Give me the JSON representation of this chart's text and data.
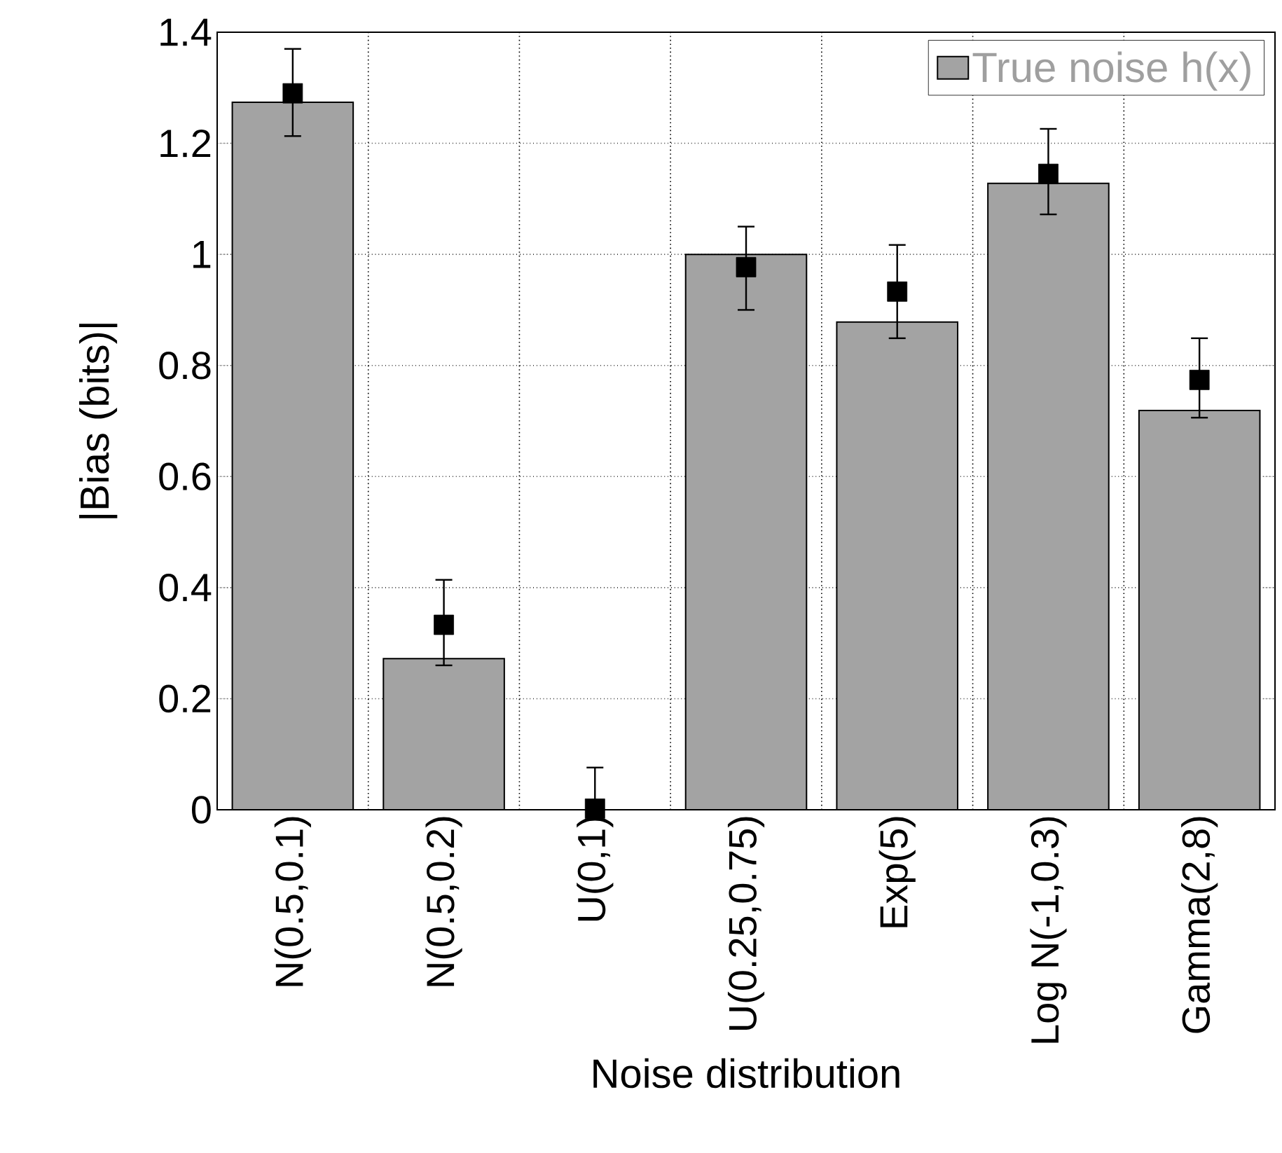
{
  "chart_data": {
    "type": "bar",
    "xlabel": "Noise distribution",
    "ylabel": "|Bias (bits)|",
    "categories": [
      "N(0.5,0.1)",
      "N(0.5,0.2)",
      "U(0,1)",
      "U(0.25,0.75)",
      "Exp(5)",
      "Log N(-1,0.3)",
      "Gamma(2,8)"
    ],
    "ylim": [
      0,
      1.4
    ],
    "yticks": [
      0,
      0.2,
      0.4,
      0.6,
      0.8,
      1,
      1.2,
      1.4
    ],
    "grid": true,
    "legend": "top right",
    "series": [
      {
        "name": "True noise h(x)",
        "color": "#a3a3a3",
        "values": [
          1.274,
          0.272,
          0,
          1.0,
          0.878,
          1.128,
          0.719
        ]
      },
      {
        "type": "scatter",
        "color": "#000000",
        "marker": "square",
        "values": [
          1.29,
          0.333,
          0.002,
          0.977,
          0.933,
          1.145,
          0.774
        ],
        "errors": [
          [
            1.213,
            1.37
          ],
          [
            0.26,
            0.414
          ],
          [
            0,
            0.076
          ],
          [
            0.9,
            1.05
          ],
          [
            0.849,
            1.017
          ],
          [
            1.072,
            1.226
          ],
          [
            0.706,
            0.849
          ]
        ]
      }
    ]
  }
}
